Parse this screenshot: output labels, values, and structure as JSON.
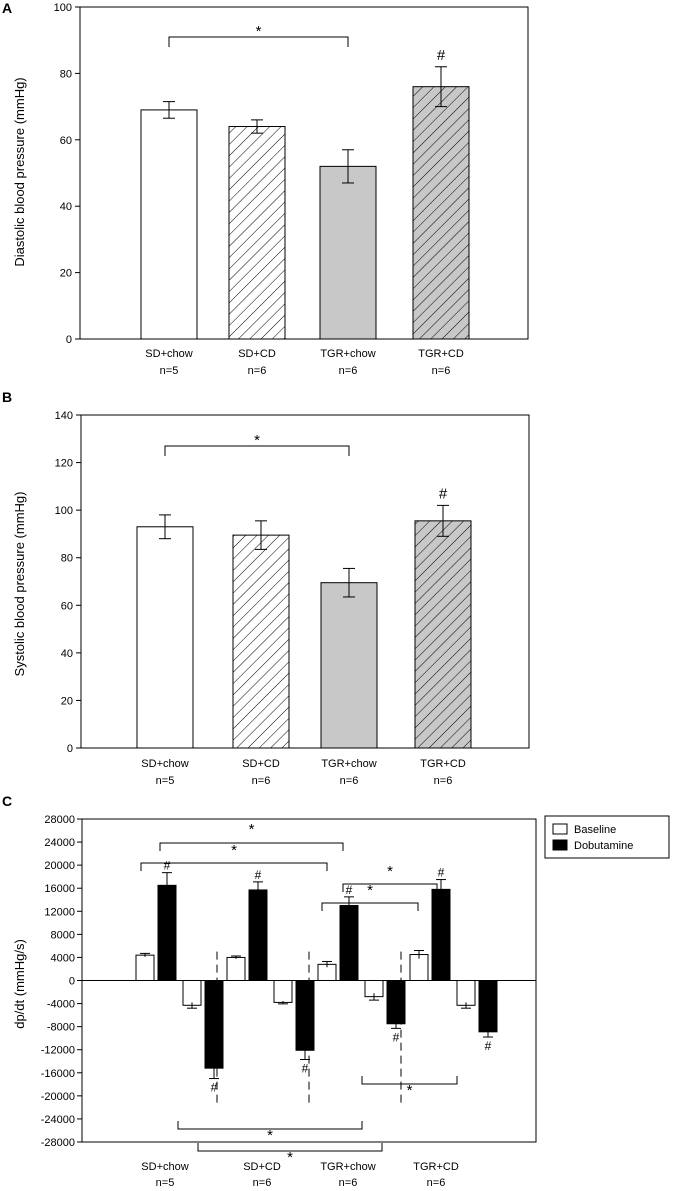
{
  "chart_data": [
    {
      "panel": "A",
      "type": "bar",
      "ylabel": "Diastolic blood pressure (mmHg)",
      "ylim": [
        0,
        100
      ],
      "yticks": [
        0,
        20,
        40,
        60,
        80,
        100
      ],
      "categories": [
        "SD+chow",
        "SD+CD",
        "TGR+chow",
        "TGR+CD"
      ],
      "n_labels": [
        "n=5",
        "n=6",
        "n=6",
        "n=6"
      ],
      "values": [
        69,
        64,
        52,
        76
      ],
      "errors": [
        2.5,
        2,
        5,
        6
      ],
      "fills": [
        "white",
        "hatch",
        "gray",
        "gray-hatch"
      ],
      "bracket": {
        "from": 0,
        "to": 2,
        "label": "*"
      },
      "bar_marks": [
        {
          "index": 3,
          "label": "#"
        }
      ]
    },
    {
      "panel": "B",
      "type": "bar",
      "ylabel": "Systolic blood pressure (mmHg)",
      "ylim": [
        0,
        140
      ],
      "yticks": [
        0,
        20,
        40,
        60,
        80,
        100,
        120,
        140
      ],
      "categories": [
        "SD+chow",
        "SD+CD",
        "TGR+chow",
        "TGR+CD"
      ],
      "n_labels": [
        "n=5",
        "n=6",
        "n=6",
        "n=6"
      ],
      "values": [
        93,
        89.5,
        69.5,
        95.5
      ],
      "errors": [
        5,
        6,
        6,
        6.5
      ],
      "fills": [
        "white",
        "hatch",
        "gray",
        "gray-hatch"
      ],
      "bracket": {
        "from": 0,
        "to": 2,
        "label": "*"
      },
      "bar_marks": [
        {
          "index": 3,
          "label": "#"
        }
      ]
    },
    {
      "panel": "C",
      "type": "bar",
      "ylabel": "dp/dt (mmHg/s)",
      "ylim": [
        -28000,
        28000
      ],
      "yticks": [
        28000,
        24000,
        20000,
        16000,
        12000,
        8000,
        4000,
        0,
        -4000,
        -8000,
        -12000,
        -16000,
        -20000,
        -24000,
        -28000
      ],
      "categories": [
        "SD+chow",
        "SD+CD",
        "TGR+chow",
        "TGR+CD"
      ],
      "n_labels": [
        "n=5",
        "n=6",
        "n=6",
        "n=6"
      ],
      "legend": [
        "Baseline",
        "Dobutamine"
      ],
      "series": [
        {
          "name": "Baseline (+dp/dt)",
          "values": [
            4400,
            4000,
            2800,
            4500
          ],
          "errors": [
            300,
            250,
            500,
            700
          ]
        },
        {
          "name": "Dobutamine (+dp/dt)",
          "values": [
            16500,
            15700,
            13000,
            15800
          ],
          "errors": [
            2200,
            1400,
            1500,
            1700
          ]
        },
        {
          "name": "Baseline (-dp/dt)",
          "values": [
            -4300,
            -3800,
            -2800,
            -4300
          ],
          "errors": [
            500,
            250,
            600,
            500
          ]
        },
        {
          "name": "Dobutamine (-dp/dt)",
          "values": [
            -15200,
            -12100,
            -7500,
            -8900
          ],
          "errors": [
            1800,
            1600,
            800,
            900
          ]
        }
      ],
      "hash_label": "#",
      "star_label": "*"
    }
  ],
  "panel_letters": [
    "A",
    "B",
    "C"
  ]
}
